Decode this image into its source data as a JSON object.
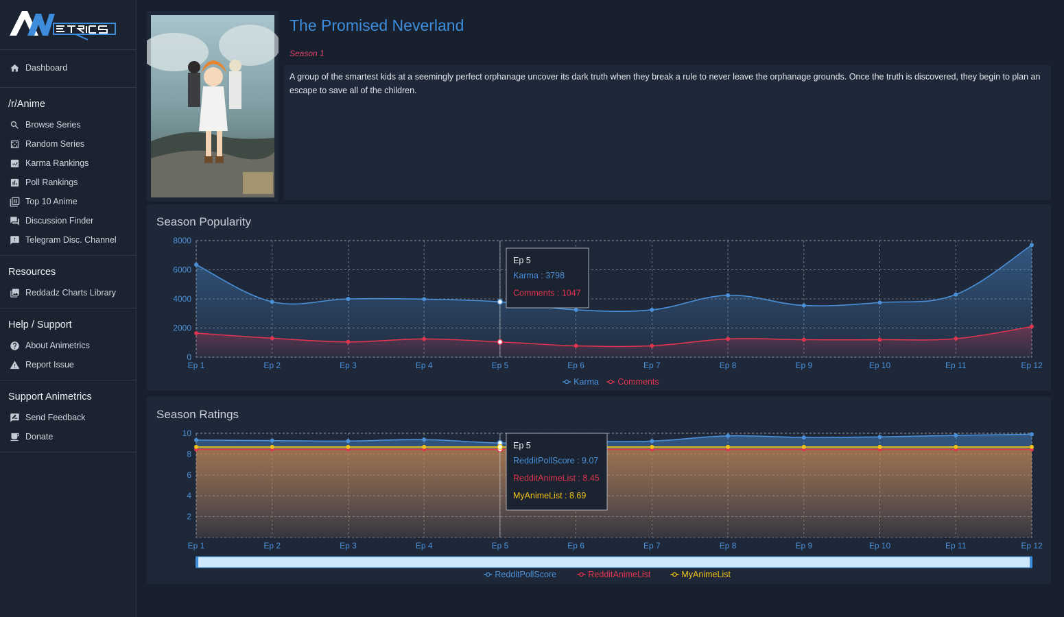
{
  "sidebar": {
    "logo_text": "AMETRICS",
    "dashboard": {
      "label": "Dashboard",
      "icon": "home-icon"
    },
    "sections": [
      {
        "title": "/r/Anime",
        "items": [
          {
            "label": "Browse Series",
            "icon": "search-icon"
          },
          {
            "label": "Random Series",
            "icon": "dice-icon"
          },
          {
            "label": "Karma Rankings",
            "icon": "ranking-icon"
          },
          {
            "label": "Poll Rankings",
            "icon": "bar-chart-icon"
          },
          {
            "label": "Top 10 Anime",
            "icon": "top10-icon"
          },
          {
            "label": "Discussion Finder",
            "icon": "chat-icon"
          },
          {
            "label": "Telegram Disc. Channel",
            "icon": "feedback-icon"
          }
        ]
      },
      {
        "title": "Resources",
        "items": [
          {
            "label": "Reddadz Charts Library",
            "icon": "image-icon"
          }
        ]
      },
      {
        "title": "Help / Support",
        "items": [
          {
            "label": "About Animetrics",
            "icon": "help-icon"
          },
          {
            "label": "Report Issue",
            "icon": "warning-icon"
          }
        ]
      },
      {
        "title": "Support Animetrics",
        "items": [
          {
            "label": "Send Feedback",
            "icon": "edit-feedback-icon"
          },
          {
            "label": "Donate",
            "icon": "coffee-icon"
          }
        ]
      }
    ]
  },
  "series": {
    "title": "The Promised Neverland",
    "season": "Season 1",
    "description": "A group of the smartest kids at a seemingly perfect orphanage uncover its dark truth when they break a rule to never leave the orphanage grounds. Once the truth is discovered, they begin to plan an escape to save all of the children."
  },
  "colors": {
    "accent": "#3d8ddc",
    "karma": "#4a90d9",
    "comments": "#e0344f",
    "mal": "#f0c419"
  },
  "chart_data": [
    {
      "type": "area",
      "title": "Season Popularity",
      "categories": [
        "Ep 1",
        "Ep 2",
        "Ep 3",
        "Ep 4",
        "Ep 5",
        "Ep 6",
        "Ep 7",
        "Ep 8",
        "Ep 9",
        "Ep 10",
        "Ep 11",
        "Ep 12"
      ],
      "yticks": [
        0,
        2000,
        4000,
        6000,
        8000
      ],
      "ylim": [
        0,
        8000
      ],
      "series": [
        {
          "name": "Karma",
          "color": "#4a90d9",
          "values": [
            6350,
            3800,
            4000,
            3980,
            3798,
            3250,
            3250,
            4250,
            3550,
            3750,
            4300,
            7700
          ]
        },
        {
          "name": "Comments",
          "color": "#e0344f",
          "values": [
            1650,
            1300,
            1050,
            1250,
            1047,
            780,
            780,
            1250,
            1200,
            1200,
            1270,
            2100
          ]
        }
      ],
      "tooltip": {
        "title": "Ep 5",
        "lines": [
          "Karma : 3798",
          "Comments : 1047"
        ]
      },
      "grid": true,
      "legend": "bottom"
    },
    {
      "type": "area",
      "title": "Season Ratings",
      "categories": [
        "Ep 1",
        "Ep 2",
        "Ep 3",
        "Ep 4",
        "Ep 5",
        "Ep 6",
        "Ep 7",
        "Ep 8",
        "Ep 9",
        "Ep 10",
        "Ep 11",
        "Ep 12"
      ],
      "yticks": [
        2,
        4,
        6,
        8,
        10
      ],
      "ylim": [
        0,
        10
      ],
      "series": [
        {
          "name": "RedditPollScore",
          "color": "#4a90d9",
          "values": [
            9.35,
            9.3,
            9.25,
            9.4,
            9.07,
            9.2,
            9.25,
            9.75,
            9.6,
            9.65,
            9.8,
            9.9
          ]
        },
        {
          "name": "RedditAnimeList",
          "color": "#e0344f",
          "values": [
            8.45,
            8.45,
            8.45,
            8.45,
            8.45,
            8.45,
            8.45,
            8.45,
            8.45,
            8.45,
            8.45,
            8.45
          ]
        },
        {
          "name": "MyAnimeList",
          "color": "#f0c419",
          "values": [
            8.69,
            8.69,
            8.69,
            8.69,
            8.69,
            8.69,
            8.69,
            8.69,
            8.69,
            8.69,
            8.69,
            8.69
          ]
        }
      ],
      "tooltip": {
        "title": "Ep 5",
        "lines": [
          "RedditPollScore : 9.07",
          "RedditAnimeList : 8.45",
          "MyAnimeList : 8.69"
        ]
      },
      "grid": true,
      "legend": "bottom"
    }
  ]
}
